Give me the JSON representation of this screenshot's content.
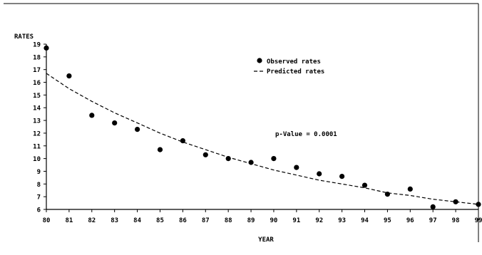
{
  "chart_data": {
    "type": "scatter",
    "ylabel": "RATES",
    "xlabel": "YEAR",
    "x_ticks": [
      "80",
      "81",
      "82",
      "83",
      "84",
      "85",
      "86",
      "87",
      "88",
      "89",
      "90",
      "91",
      "92",
      "93",
      "94",
      "95",
      "96",
      "97",
      "98",
      "99"
    ],
    "y_ticks": [
      "6",
      "7",
      "8",
      "9",
      "10",
      "11",
      "12",
      "13",
      "14",
      "15",
      "16",
      "17",
      "18",
      "19"
    ],
    "xlim": [
      80,
      99
    ],
    "ylim": [
      6,
      19
    ],
    "grid": false,
    "legend_position": "top-center",
    "annotation": "p-Value = 0.0001",
    "series": [
      {
        "name": "Observed rates",
        "style": "markers",
        "x": [
          80,
          81,
          82,
          83,
          84,
          85,
          86,
          87,
          88,
          89,
          90,
          91,
          92,
          93,
          94,
          95,
          96,
          97,
          98,
          99
        ],
        "y": [
          18.7,
          16.5,
          13.4,
          12.8,
          12.3,
          10.7,
          11.4,
          10.3,
          10.0,
          9.7,
          10.0,
          9.3,
          8.8,
          8.6,
          7.9,
          7.2,
          7.6,
          6.2,
          6.6,
          6.4
        ]
      },
      {
        "name": "Predicted rates",
        "style": "dashed",
        "x": [
          80,
          81,
          82,
          83,
          84,
          85,
          86,
          87,
          88,
          89,
          90,
          91,
          92,
          93,
          94,
          95,
          96,
          97,
          98,
          99
        ],
        "y": [
          16.7,
          15.5,
          14.5,
          13.6,
          12.8,
          12.0,
          11.3,
          10.7,
          10.1,
          9.6,
          9.1,
          8.7,
          8.3,
          8.0,
          7.7,
          7.3,
          7.1,
          6.8,
          6.6,
          6.4
        ]
      }
    ]
  }
}
